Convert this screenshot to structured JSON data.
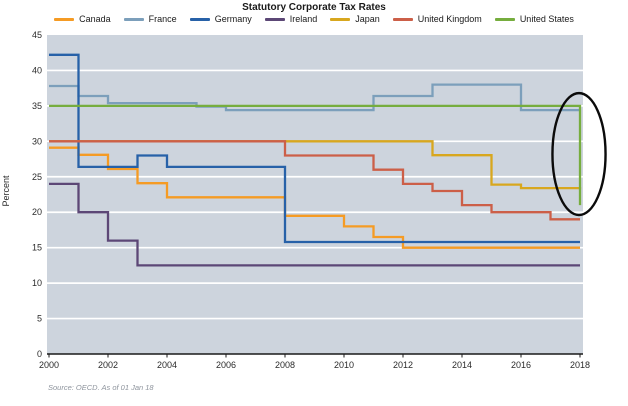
{
  "figure": {
    "title": "Statutory Corporate Tax Rates",
    "ylabel": "Percent",
    "source": "Source: OECD. As of 01 Jan 18"
  },
  "chart_data": {
    "type": "line",
    "line_style": "step-after",
    "title": "Statutory Corporate Tax Rates",
    "xlabel": "",
    "ylabel": "Percent",
    "ylim": [
      0,
      45
    ],
    "xlim": [
      2000,
      2018
    ],
    "yticks": [
      0,
      5,
      10,
      15,
      20,
      25,
      30,
      35,
      40,
      45
    ],
    "xticks": [
      2000,
      2002,
      2004,
      2006,
      2008,
      2010,
      2012,
      2014,
      2016,
      2018
    ],
    "grid": "horizontal white gridlines on light blue-gray plot background",
    "plot_background": "#cdd4dd",
    "gridline_color": "#ffffff",
    "axis_color": "#1a1a1a",
    "legend_position": "top",
    "years": [
      2000,
      2001,
      2002,
      2003,
      2004,
      2005,
      2006,
      2007,
      2008,
      2009,
      2010,
      2011,
      2012,
      2013,
      2014,
      2015,
      2016,
      2017,
      2018
    ],
    "series": [
      {
        "name": "Canada",
        "color": "#f59b24",
        "values": [
          29.1,
          28.1,
          26.1,
          24.1,
          22.1,
          22.1,
          22.1,
          22.1,
          19.5,
          19.5,
          18,
          16.5,
          15,
          15,
          15,
          15,
          15,
          15,
          15
        ]
      },
      {
        "name": "France",
        "color": "#7c9fbb",
        "values": [
          37.8,
          36.4,
          35.4,
          35.4,
          35.4,
          34.9,
          34.4,
          34.4,
          34.4,
          34.4,
          34.4,
          36.4,
          36.4,
          38,
          38,
          38,
          34.4,
          34.4,
          34.4
        ]
      },
      {
        "name": "Germany",
        "color": "#2761a8",
        "values": [
          42.2,
          26.4,
          26.4,
          28,
          26.4,
          26.4,
          26.4,
          26.4,
          15.8,
          15.8,
          15.8,
          15.8,
          15.8,
          15.8,
          15.8,
          15.8,
          15.8,
          15.8,
          15.8
        ]
      },
      {
        "name": "Ireland",
        "color": "#5c4776",
        "values": [
          24,
          20,
          16,
          12.5,
          12.5,
          12.5,
          12.5,
          12.5,
          12.5,
          12.5,
          12.5,
          12.5,
          12.5,
          12.5,
          12.5,
          12.5,
          12.5,
          12.5,
          12.5
        ]
      },
      {
        "name": "Japan",
        "color": "#d8a71e",
        "values": [
          30,
          30,
          30,
          30,
          30,
          30,
          30,
          30,
          30,
          30,
          30,
          30,
          30,
          28.05,
          28.05,
          23.9,
          23.4,
          23.4,
          23.2
        ]
      },
      {
        "name": "United Kingdom",
        "color": "#cc5f48",
        "values": [
          30,
          30,
          30,
          30,
          30,
          30,
          30,
          30,
          28,
          28,
          28,
          26,
          24,
          23,
          21,
          20,
          20,
          19,
          19
        ]
      },
      {
        "name": "United States",
        "color": "#76ad3e",
        "values": [
          35,
          35,
          35,
          35,
          35,
          35,
          35,
          35,
          35,
          35,
          35,
          35,
          35,
          35,
          35,
          35,
          35,
          35,
          21
        ]
      }
    ],
    "annotation": {
      "shape": "ellipse",
      "description": "hand-drawn black oval highlighting the 2018 drop of the United States rate from 35 to 21",
      "year": 2018,
      "percent": 28.2,
      "half_width_years": 0.9,
      "half_height_percent": 8.6,
      "color": "#0b0b0b"
    }
  }
}
